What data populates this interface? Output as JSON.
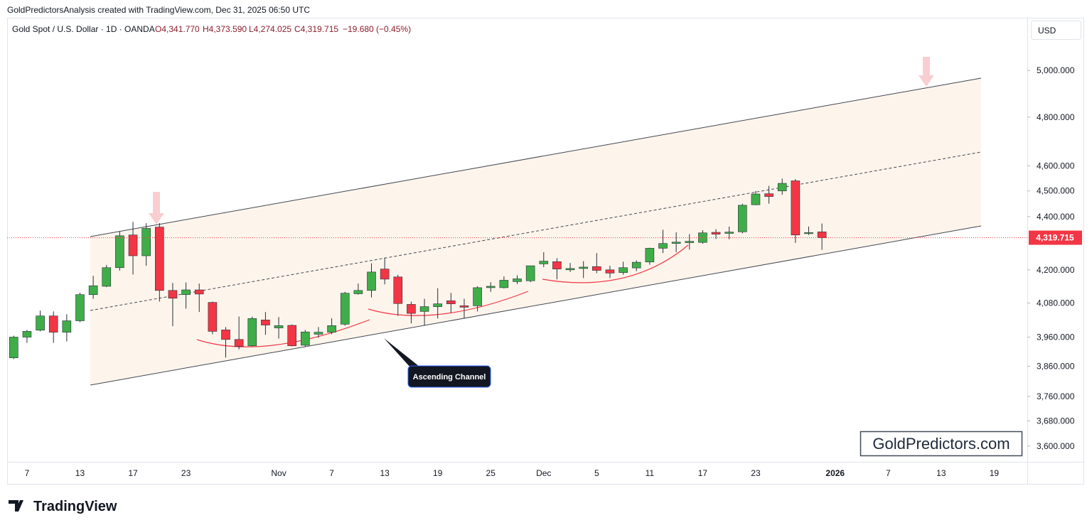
{
  "header": {
    "attribution": "GoldPredictorsAnalysis created with TradingView.com, Dec 31, 2025 06:50 UTC",
    "symbol": "Gold Spot / U.S. Dollar · 1D · OANDA",
    "ohlc": [
      "O4,341.770",
      "H4,373.590",
      "L4,274.025",
      "C4,319.715",
      "−19.680 (−0.45%)"
    ]
  },
  "currency": "USD",
  "watermark": "GoldPredictors.com",
  "brand": "TradingView",
  "annotations": [
    "Ascending Channel"
  ],
  "chart_data": {
    "type": "candlestick",
    "log_scale": true,
    "up_color": "#3fae49",
    "down_color": "#f23645",
    "wick_color": "#2a2e39",
    "categories": [
      null,
      "7",
      null,
      null,
      null,
      "13",
      null,
      null,
      null,
      "17",
      null,
      null,
      null,
      "23",
      null,
      null,
      null,
      null,
      null,
      null,
      "Nov",
      null,
      null,
      null,
      "7",
      null,
      null,
      null,
      "13",
      null,
      null,
      null,
      "19",
      null,
      null,
      null,
      "25",
      null,
      null,
      null,
      "Dec",
      null,
      null,
      null,
      "5",
      null,
      null,
      null,
      "11",
      null,
      null,
      null,
      "17",
      null,
      null,
      null,
      "23",
      null,
      null,
      null,
      null,
      null,
      "2026",
      null,
      null,
      null,
      "7",
      null,
      null,
      null,
      "13",
      null,
      null,
      null,
      "19",
      null,
      null
    ],
    "open": [
      3889,
      3960,
      3984,
      4034,
      3977,
      4017,
      4110,
      4140,
      4208,
      4330,
      4252,
      4360,
      4125,
      4110,
      4127,
      4082,
      3985,
      3952,
      3930,
      4020,
      3992,
      4001,
      3932,
      3970,
      3977,
      4005,
      4113,
      4125,
      4203,
      4174,
      4075,
      4050,
      4067,
      4088,
      4070,
      4070,
      4135,
      4135,
      4157,
      4160,
      4222,
      4230,
      4200,
      4205,
      4212,
      4200,
      4190,
      4207,
      4229,
      4280,
      4298,
      4301,
      4302,
      4340,
      4336,
      4342,
      4446,
      4489,
      4500,
      4540,
      4335,
      4341.77,
      null,
      null,
      null,
      null,
      null,
      null,
      null,
      null,
      null,
      null,
      null,
      null,
      null,
      null,
      null
    ],
    "high": [
      3965,
      3985,
      4053,
      4050,
      4040,
      4117,
      4178,
      4218,
      4344,
      4380,
      4375,
      4375,
      4152,
      4154,
      4150,
      4085,
      3995,
      4032,
      4032,
      4048,
      4030,
      4004,
      3985,
      3995,
      4026,
      4120,
      4150,
      4224,
      4245,
      4182,
      4085,
      4095,
      4133,
      4116,
      4095,
      4140,
      4155,
      4176,
      4180,
      4215,
      4265,
      4243,
      4225,
      4232,
      4262,
      4215,
      4230,
      4235,
      4282,
      4350,
      4340,
      4333,
      4348,
      4352,
      4362,
      4450,
      4500,
      4520,
      4549,
      4547,
      4362,
      4373.59,
      null,
      null,
      null,
      null,
      null,
      null,
      null,
      null,
      null,
      null,
      null,
      null,
      null,
      null,
      null
    ],
    "low": [
      3885,
      3940,
      3980,
      3940,
      3945,
      4012,
      4095,
      4137,
      4197,
      4183,
      4215,
      4085,
      3998,
      4060,
      4048,
      3970,
      3890,
      3918,
      3928,
      3968,
      3955,
      3928,
      3926,
      3958,
      3970,
      4000,
      4110,
      4100,
      4147,
      4035,
      4008,
      4000,
      4025,
      4045,
      4025,
      4050,
      4120,
      4132,
      4148,
      4155,
      4210,
      4165,
      4192,
      4170,
      4188,
      4170,
      4182,
      4195,
      4219,
      4262,
      4265,
      4275,
      4297,
      4315,
      4314,
      4336,
      4444,
      4450,
      4485,
      4300,
      4330,
      4274.025,
      null,
      null,
      null,
      null,
      null,
      null,
      null,
      null,
      null,
      null,
      null,
      null,
      null,
      null,
      null
    ],
    "close": [
      3960,
      3980,
      4034,
      3977,
      4017,
      4110,
      4142,
      4208,
      4327,
      4252,
      4355,
      4125,
      4097,
      4127,
      4112,
      3980,
      3952,
      3928,
      4025,
      4002,
      4000,
      3930,
      3978,
      3977,
      4000,
      4115,
      4125,
      4192,
      4166,
      4078,
      4043,
      4067,
      4077,
      4077,
      4065,
      4135,
      4140,
      4162,
      4167,
      4215,
      4232,
      4203,
      4205,
      4210,
      4198,
      4188,
      4208,
      4228,
      4280,
      4298,
      4303,
      4306,
      4338,
      4333,
      4341,
      4444,
      4488,
      4478,
      4530,
      4330,
      4339,
      4319.715,
      null,
      null,
      null,
      null,
      null,
      null,
      null,
      null,
      null,
      null,
      null,
      null,
      null,
      null,
      null
    ],
    "ylim": [
      3551,
      5252
    ],
    "yticks": [
      {
        "value": 3600,
        "label": "3,600.000"
      },
      {
        "value": 3680,
        "label": "3,680.000"
      },
      {
        "value": 3760,
        "label": "3,760.000"
      },
      {
        "value": 3860,
        "label": "3,860.000"
      },
      {
        "value": 3960,
        "label": "3,960.000"
      },
      {
        "value": 4080,
        "label": "4,080.000"
      },
      {
        "value": 4200,
        "label": "4,200.000"
      },
      {
        "value": 4400,
        "label": "4,400.000"
      },
      {
        "value": 4500,
        "label": "4,500.000"
      },
      {
        "value": 4600,
        "label": "4,600.000"
      },
      {
        "value": 4800,
        "label": "4,800.000"
      },
      {
        "value": 5000,
        "label": "5,000.000"
      }
    ],
    "last_price": {
      "value": 4319.715,
      "label": "4,319.715"
    }
  }
}
